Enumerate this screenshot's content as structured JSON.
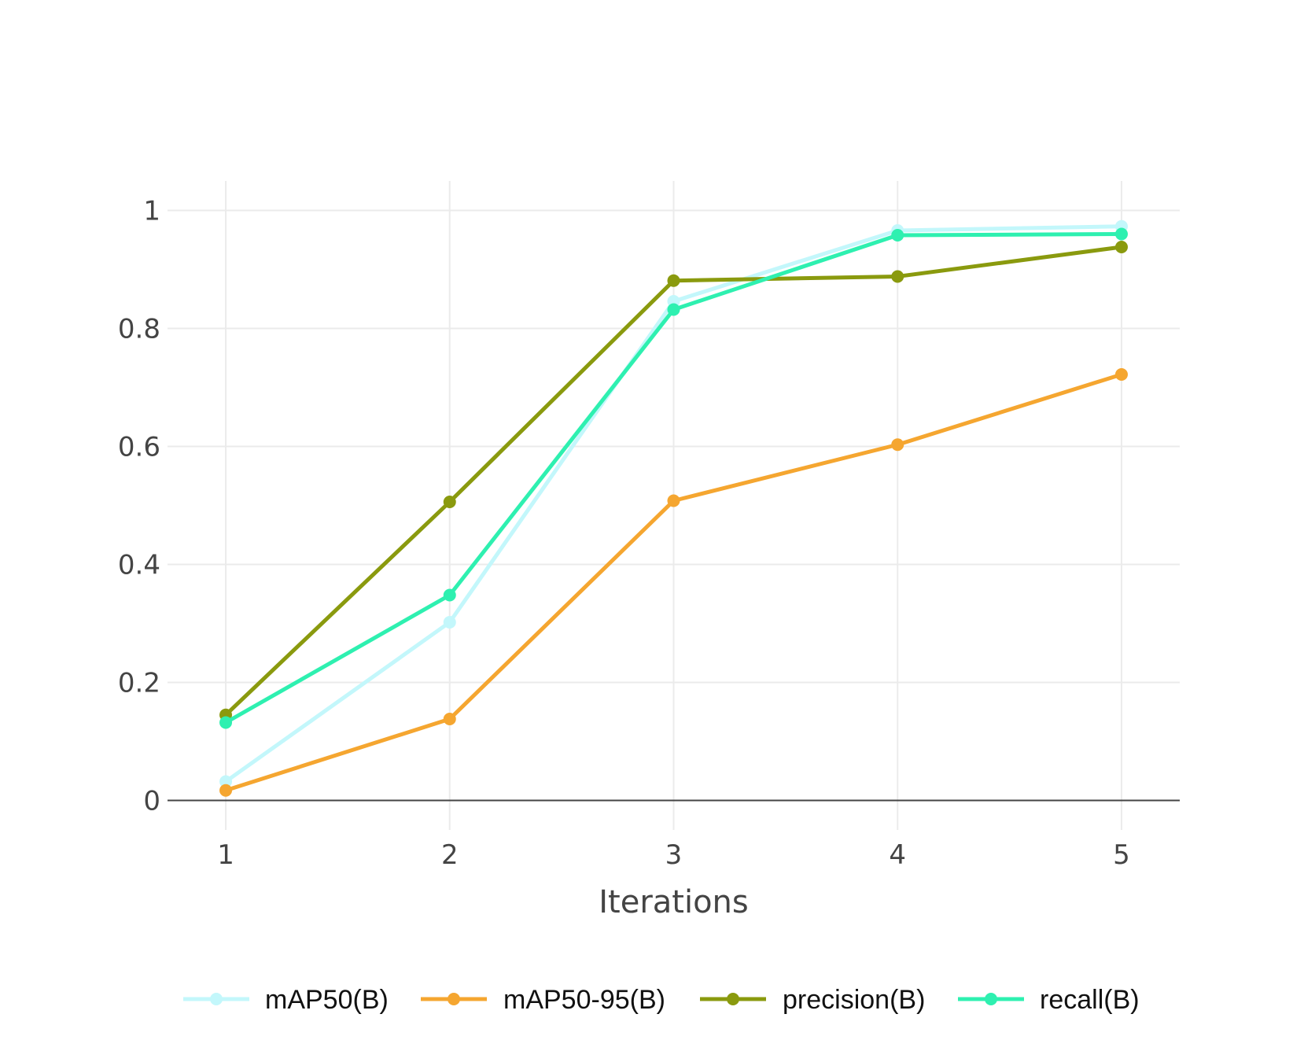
{
  "chart_data": {
    "type": "line",
    "title": "",
    "xlabel": "Iterations",
    "ylabel": "",
    "x": [
      1,
      2,
      3,
      4,
      5
    ],
    "xlim": [
      0.74,
      5.26
    ],
    "ylim": [
      -0.05,
      1.05
    ],
    "x_ticks": [
      "1",
      "2",
      "3",
      "4",
      "5"
    ],
    "y_ticks": [
      "0",
      "0.2",
      "0.4",
      "0.6",
      "0.8",
      "1"
    ],
    "y_tick_values": [
      0,
      0.2,
      0.4,
      0.6,
      0.8,
      1
    ],
    "grid": true,
    "legend_position": "bottom",
    "series": [
      {
        "name": "mAP50(B)",
        "color": "#c3f7fb",
        "values": [
          0.032,
          0.302,
          0.846,
          0.966,
          0.973
        ]
      },
      {
        "name": "mAP50-95(B)",
        "color": "#f5a630",
        "values": [
          0.017,
          0.138,
          0.508,
          0.603,
          0.722
        ]
      },
      {
        "name": "precision(B)",
        "color": "#8a9a0e",
        "values": [
          0.145,
          0.506,
          0.881,
          0.888,
          0.938
        ]
      },
      {
        "name": "recall(B)",
        "color": "#2ef0b0",
        "values": [
          0.132,
          0.348,
          0.832,
          0.958,
          0.96
        ]
      }
    ]
  }
}
